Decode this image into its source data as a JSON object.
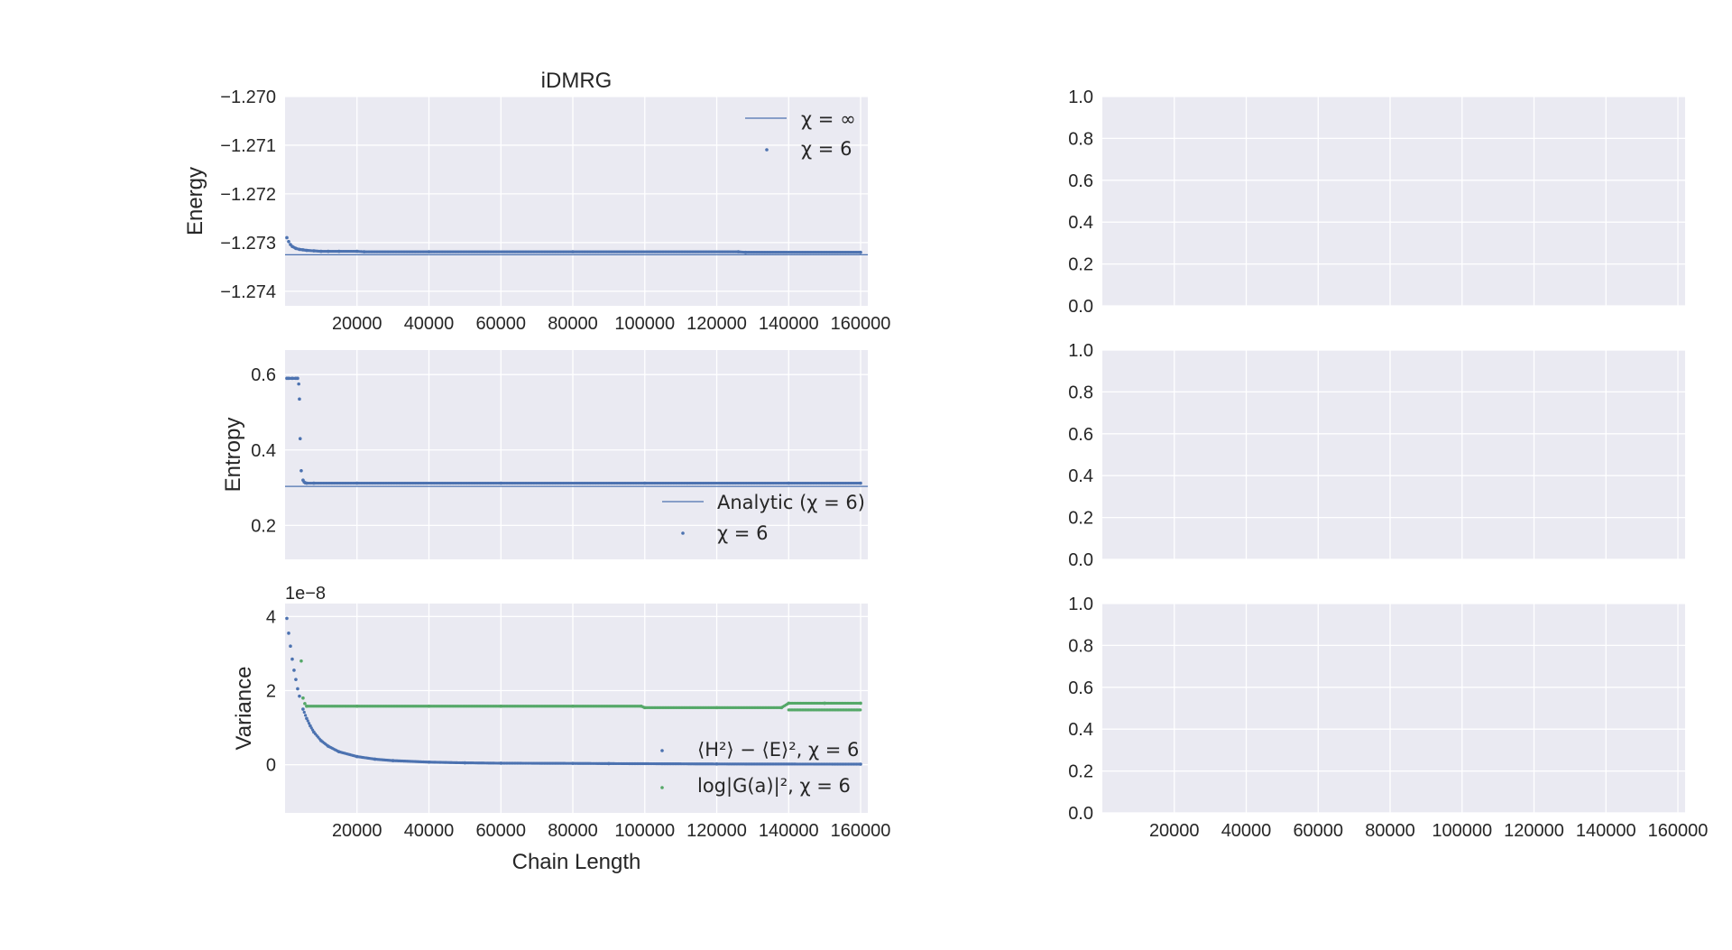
{
  "colors": {
    "panel_bg": "#eaeaf2",
    "grid": "#ffffff",
    "series_blue": "#4c72b0",
    "series_green": "#55a868",
    "text": "#262626"
  },
  "chart_data": [
    {
      "type": "line",
      "title": "iDMRG",
      "ylabel": "Energy",
      "xlim": [
        0,
        162000
      ],
      "ylim": [
        -1.2743,
        -1.27
      ],
      "xticks": [
        20000,
        40000,
        60000,
        80000,
        100000,
        120000,
        140000,
        160000
      ],
      "yticks": [
        "−1.270",
        "−1.271",
        "−1.272",
        "−1.273",
        "−1.274"
      ],
      "ytick_values": [
        -1.27,
        -1.271,
        -1.272,
        -1.273,
        -1.274
      ],
      "grid": true,
      "legend_position": "top-right",
      "hline": {
        "name": "χ = ∞",
        "y": -1.27325
      },
      "series": [
        {
          "name": "χ = 6",
          "style": "dots",
          "x": [
            500,
            1000,
            1500,
            2000,
            3000,
            4000,
            5000,
            6000,
            8000,
            10000,
            12000,
            15000,
            20000,
            22000,
            40000,
            80000,
            126000,
            128000,
            160000
          ],
          "y": [
            -1.2729,
            -1.27298,
            -1.27304,
            -1.27308,
            -1.27312,
            -1.27314,
            -1.27315,
            -1.27316,
            -1.27317,
            -1.27318,
            -1.27318,
            -1.27318,
            -1.27318,
            -1.27319,
            -1.27319,
            -1.27319,
            -1.27319,
            -1.2732,
            -1.2732
          ]
        }
      ]
    },
    {
      "type": "line",
      "ylabel": "Entropy",
      "xlim": [
        0,
        162000
      ],
      "ylim": [
        0.11,
        0.665
      ],
      "yticks": [
        "0.2",
        "0.4",
        "0.6"
      ],
      "ytick_values": [
        0.2,
        0.4,
        0.6
      ],
      "grid": true,
      "legend_position": "lower right",
      "hline": {
        "name": "Analytic (χ =  6)",
        "y": 0.3035
      },
      "series": [
        {
          "name": "χ = 6",
          "style": "dots",
          "x": [
            500,
            1000,
            2000,
            3000,
            3500,
            3800,
            4000,
            4200,
            4500,
            5000,
            5300,
            5600,
            6000,
            8000,
            20000,
            60000,
            100000,
            140000,
            160000
          ],
          "y": [
            0.59,
            0.59,
            0.59,
            0.59,
            0.59,
            0.575,
            0.535,
            0.43,
            0.345,
            0.32,
            0.315,
            0.313,
            0.312,
            0.312,
            0.312,
            0.312,
            0.312,
            0.312,
            0.312
          ]
        }
      ]
    },
    {
      "type": "line",
      "ylabel": "Variance",
      "xlabel": "Chain Length",
      "offset_text": "1e−8",
      "xlim": [
        0,
        162000
      ],
      "ylim": [
        -1.3,
        4.35
      ],
      "yticks": [
        "0",
        "2",
        "4"
      ],
      "ytick_values": [
        0,
        2,
        4
      ],
      "xticks": [
        20000,
        40000,
        60000,
        80000,
        100000,
        120000,
        140000,
        160000
      ],
      "grid": true,
      "legend_position": "lower right",
      "series": [
        {
          "name": "⟨H²⟩ − ⟨E⟩², χ = 6",
          "style": "dots",
          "x": [
            500,
            1000,
            1500,
            2000,
            2500,
            3000,
            3500,
            4000,
            5000,
            6000,
            7000,
            8000,
            10000,
            12000,
            15000,
            20000,
            25000,
            30000,
            40000,
            50000,
            60000,
            80000,
            90000,
            120000,
            160000
          ],
          "y": [
            3.95,
            3.55,
            3.2,
            2.85,
            2.55,
            2.3,
            2.05,
            1.85,
            1.5,
            1.25,
            1.05,
            0.88,
            0.65,
            0.5,
            0.35,
            0.22,
            0.15,
            0.11,
            0.07,
            0.05,
            0.04,
            0.035,
            0.03,
            0.02,
            0.015
          ]
        },
        {
          "name": "log|G(a)|², χ = 6",
          "style": "dots",
          "x": [
            4500,
            5000,
            5500,
            6000,
            20000,
            40000,
            60000,
            80000,
            99000,
            100000,
            120000,
            138000,
            140000,
            150000,
            160000
          ],
          "y": [
            2.8,
            1.8,
            1.65,
            1.58,
            1.58,
            1.58,
            1.58,
            1.58,
            1.58,
            1.54,
            1.54,
            1.54,
            1.66,
            1.66,
            1.66
          ],
          "y_secondary_branch": {
            "x_from": 140000,
            "x_to": 160000,
            "y": 1.48
          }
        }
      ]
    },
    {
      "type": "line",
      "empty": true,
      "ylim": [
        0,
        1
      ],
      "yticks": [
        "0.0",
        "0.2",
        "0.4",
        "0.6",
        "0.8",
        "1.0"
      ],
      "ytick_values": [
        0,
        0.2,
        0.4,
        0.6,
        0.8,
        1.0
      ],
      "xlim": [
        0,
        162000
      ],
      "grid": true
    },
    {
      "type": "line",
      "empty": true,
      "ylim": [
        0,
        1
      ],
      "yticks": [
        "0.0",
        "0.2",
        "0.4",
        "0.6",
        "0.8",
        "1.0"
      ],
      "ytick_values": [
        0,
        0.2,
        0.4,
        0.6,
        0.8,
        1.0
      ],
      "xlim": [
        0,
        162000
      ],
      "grid": true
    },
    {
      "type": "line",
      "empty": true,
      "ylim": [
        0,
        1
      ],
      "yticks": [
        "0.0",
        "0.2",
        "0.4",
        "0.6",
        "0.8",
        "1.0"
      ],
      "ytick_values": [
        0,
        0.2,
        0.4,
        0.6,
        0.8,
        1.0
      ],
      "xlim": [
        0,
        162000
      ],
      "xticks": [
        20000,
        40000,
        60000,
        80000,
        100000,
        120000,
        140000,
        160000
      ],
      "grid": true
    }
  ]
}
